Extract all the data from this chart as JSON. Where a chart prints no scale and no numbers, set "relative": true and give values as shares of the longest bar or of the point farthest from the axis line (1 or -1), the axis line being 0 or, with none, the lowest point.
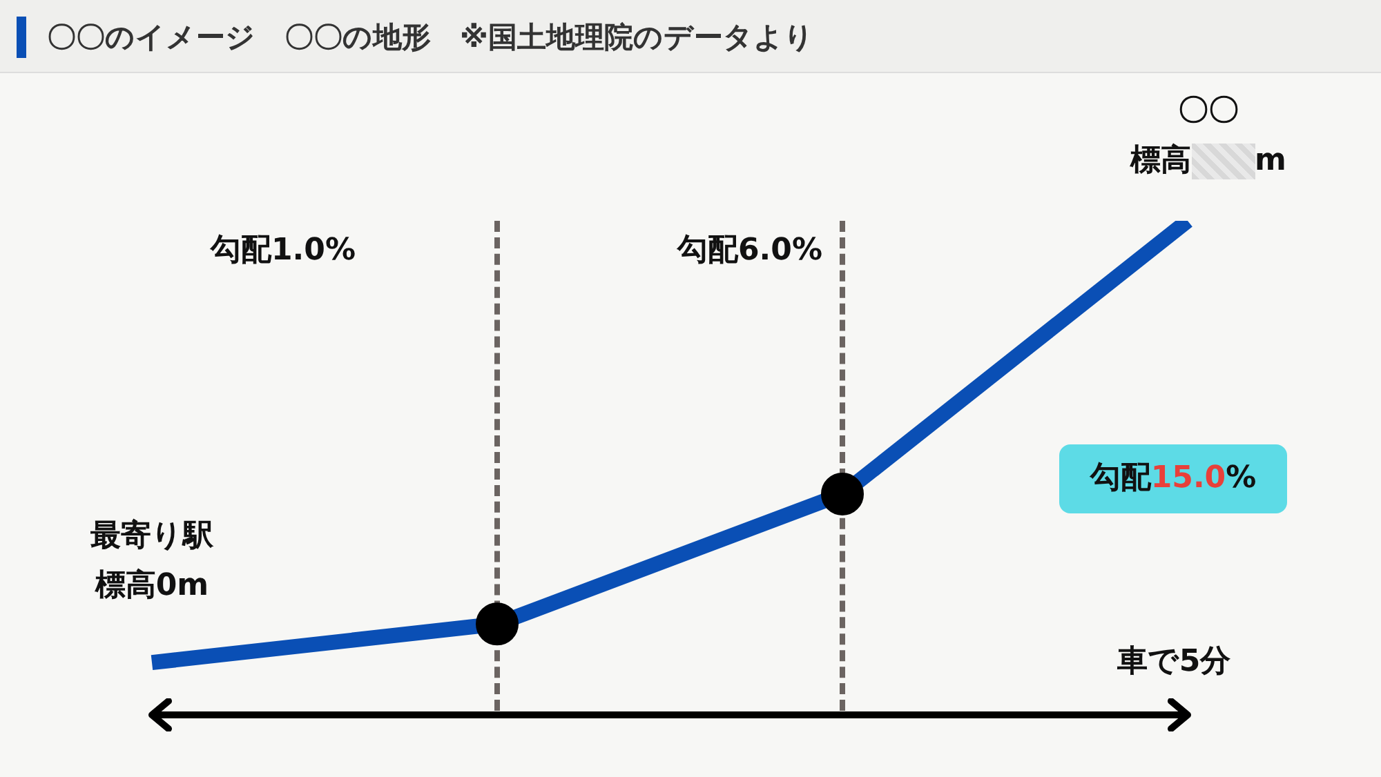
{
  "chart_data": {
    "type": "line",
    "title": "〇〇のイメージ　〇〇の地形　※国土地理院のデータより",
    "relative": true,
    "categories": [
      null,
      null,
      null,
      null
    ],
    "marker": "circle",
    "line_style": "solid",
    "series": [
      {
        "color": "#0a4fb5",
        "values": [
          0.106,
          0.184,
          0.447,
          1
        ]
      }
    ],
    "annotations": [
      "勾配1.0%",
      "勾配6.0%",
      "勾配15.0%",
      "最寄り駅",
      "標高0m",
      "〇〇",
      "標高　　m",
      "車で5分"
    ]
  }
}
